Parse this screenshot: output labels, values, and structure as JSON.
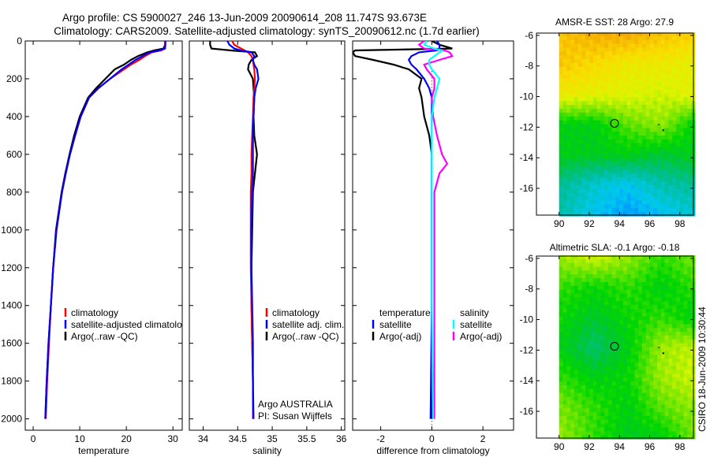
{
  "title_line1": "Argo profile: CS 5900027_246 13-Jun-2009 20090614_208 11.747S 93.673E",
  "title_line2": "Climatology: CARS2009. Satellite-adjusted climatology: synTS_20090612.nc (1.7d earlier)",
  "credit": "CSIRO 18-Jun-2009 10:30:44",
  "colors": {
    "climatology": "#ff0000",
    "satellite": "#0000ff",
    "argo": "#000000",
    "sal_satellite": "#00ffff",
    "sal_argo": "#ff00ff"
  },
  "chart_data": [
    {
      "type": "line",
      "id": "temperature",
      "xlabel": "temperature",
      "ylabel": "",
      "xlim": [
        -1.7,
        32
      ],
      "ylim": [
        0,
        2060
      ],
      "y_reversed": true,
      "xticks": [
        0,
        10,
        20,
        30
      ],
      "yticks": [
        0,
        200,
        400,
        600,
        800,
        1000,
        1200,
        1400,
        1600,
        1800,
        2000
      ],
      "depth": [
        0,
        20,
        40,
        50,
        60,
        80,
        100,
        125,
        150,
        200,
        250,
        300,
        400,
        500,
        600,
        700,
        800,
        1000,
        1200,
        1400,
        1600,
        1800,
        2000
      ],
      "series": [
        {
          "name": "Argo(..raw -QC)",
          "color": "#000000",
          "values": [
            28.3,
            28.3,
            28.0,
            26,
            24.5,
            22.5,
            21,
            19.5,
            17.5,
            15.5,
            13.5,
            11.8,
            10,
            8.8,
            7.8,
            6.9,
            6.1,
            4.9,
            4.3,
            3.8,
            3.3,
            2.9,
            2.6
          ]
        },
        {
          "name": "climatology",
          "color": "#ff0000",
          "values": [
            28.3,
            28.3,
            28.3,
            27.5,
            25.5,
            24,
            22.8,
            21,
            19.5,
            16.5,
            14,
            12,
            10.2,
            9,
            7.9,
            7,
            6.2,
            5,
            4.3,
            3.8,
            3.4,
            3.0,
            2.7
          ]
        },
        {
          "name": "satellite-adjusted climatology",
          "color": "#0000ff",
          "values": [
            28.4,
            28.4,
            28.3,
            27,
            25,
            23.5,
            22,
            20.5,
            19,
            16.5,
            14,
            12,
            10.2,
            9,
            7.9,
            7,
            6.2,
            5,
            4.3,
            3.8,
            3.3,
            2.9,
            2.6
          ]
        }
      ],
      "legend": [
        "climatology",
        "satellite-adjusted climatology",
        "Argo(..raw -QC)"
      ]
    },
    {
      "type": "line",
      "id": "salinity",
      "xlabel": "salinity",
      "xlim": [
        33.8,
        36.05
      ],
      "ylim": [
        0,
        2060
      ],
      "y_reversed": true,
      "xticks": [
        34,
        34.5,
        35,
        35.5,
        36
      ],
      "depth": [
        0,
        20,
        40,
        50,
        60,
        80,
        100,
        125,
        150,
        200,
        250,
        300,
        400,
        500,
        600,
        700,
        800,
        1000,
        1200,
        1400,
        1600,
        1800,
        2000
      ],
      "series": [
        {
          "name": "Argo(..raw -QC)",
          "color": "#000000",
          "values": [
            34.1,
            34.1,
            34.12,
            34.4,
            34.75,
            34.78,
            34.7,
            34.66,
            34.65,
            34.72,
            34.73,
            34.74,
            34.73,
            34.74,
            34.78,
            34.75,
            34.72,
            34.71,
            34.7,
            34.7,
            34.71,
            34.72,
            34.72
          ]
        },
        {
          "name": "climatology",
          "color": "#ff0000",
          "values": [
            34.42,
            34.45,
            34.55,
            34.6,
            34.65,
            34.7,
            34.72,
            34.73,
            34.74,
            34.75,
            34.74,
            34.73,
            34.72,
            34.71,
            34.7,
            34.7,
            34.69,
            34.69,
            34.69,
            34.7,
            34.71,
            34.72,
            34.72
          ]
        },
        {
          "name": "satellite adj. clim.",
          "color": "#0000ff",
          "values": [
            34.35,
            34.38,
            34.45,
            34.55,
            34.7,
            34.74,
            34.72,
            34.74,
            34.78,
            34.8,
            34.76,
            34.74,
            34.73,
            34.72,
            34.72,
            34.72,
            34.71,
            34.7,
            34.7,
            34.71,
            34.72,
            34.72,
            34.73
          ]
        }
      ],
      "legend": [
        "climatology",
        "satellite adj. clim.",
        "Argo(..raw -QC)"
      ],
      "annotation": [
        "Argo AUSTRALIA",
        "PI: Susan Wijffels"
      ]
    },
    {
      "type": "line",
      "id": "difference",
      "xlabel": "difference from climatology",
      "xlim": [
        -3.1,
        3.2
      ],
      "ylim": [
        0,
        2060
      ],
      "y_reversed": true,
      "xticks": [
        -2,
        0,
        2
      ],
      "depth": [
        0,
        20,
        40,
        50,
        60,
        80,
        100,
        125,
        150,
        200,
        250,
        300,
        400,
        500,
        600,
        650,
        700,
        800,
        1000,
        1400,
        2000
      ],
      "series": [
        {
          "name": "temperature Argo(-adj)",
          "color": "#000000",
          "values": [
            0,
            0.3,
            0.8,
            -3,
            -3.1,
            -3,
            -2.3,
            -1.5,
            -0.9,
            -0.4,
            -0.5,
            -0.4,
            -0.3,
            -0.1,
            0,
            0,
            0,
            0,
            0,
            0,
            0
          ]
        },
        {
          "name": "temperature satellite",
          "color": "#0000ff",
          "values": [
            0.2,
            0.3,
            0.3,
            0.2,
            -0.5,
            -0.8,
            -0.9,
            -0.8,
            -0.6,
            -0.3,
            -0.1,
            0,
            0,
            0,
            0,
            0,
            0,
            0,
            0,
            0,
            -0.05
          ]
        },
        {
          "name": "salinity Argo(-adj)",
          "color": "#ff00ff",
          "values": [
            -0.3,
            -0.5,
            -0.3,
            0.5,
            0.7,
            0.8,
            0.3,
            -0.3,
            -0.2,
            0.1,
            0.1,
            0,
            0.05,
            0.2,
            0.4,
            0.6,
            0.3,
            0.1,
            0.1,
            0.1,
            0.1
          ]
        },
        {
          "name": "salinity satellite",
          "color": "#00ffff",
          "values": [
            -0.2,
            -0.3,
            0.1,
            0.4,
            0.3,
            0.1,
            -0.1,
            -0.1,
            0,
            0.3,
            0.2,
            0.1,
            0,
            0,
            0,
            0,
            0,
            0,
            0,
            0,
            0.05
          ]
        }
      ],
      "legend_headers": [
        "temperature",
        "salinity"
      ],
      "legend": [
        "satellite",
        "Argo(-adj)",
        "satellite",
        "Argo(-adj)"
      ]
    },
    {
      "type": "heatmap",
      "id": "sst_map",
      "title": "AMSR-E SST: 28 Argo: 27.9",
      "xlim": [
        88.5,
        98.9
      ],
      "ylim": [
        -17.75,
        -5.85
      ],
      "xticks": [
        90,
        92,
        94,
        96,
        98
      ],
      "yticks": [
        -6,
        -8,
        -10,
        -12,
        -14,
        -16
      ],
      "data_lon": [
        90,
        98.9
      ],
      "data_lat": [
        -5.8,
        -17.6
      ],
      "argo_position": [
        93.673,
        -11.747
      ],
      "grid_colormap_levels": [
        [
          0.8,
          0.83,
          0.84,
          0.8,
          0.78
        ],
        [
          0.79,
          0.76,
          0.72,
          0.72,
          0.7
        ],
        [
          0.72,
          0.7,
          0.69,
          0.67,
          0.7
        ],
        [
          0.5,
          0.5,
          0.58,
          0.62,
          0.5
        ],
        [
          0.5,
          0.49,
          0.5,
          0.47,
          0.5
        ],
        [
          0.4,
          0.35,
          0.32,
          0.38,
          0.4
        ],
        [
          0.38,
          0.32,
          0.27,
          0.31,
          0.35
        ]
      ]
    },
    {
      "type": "heatmap",
      "id": "sla_map",
      "title": "Altimetric SLA: -0.1 Argo: -0.18",
      "xlim": [
        88.5,
        98.9
      ],
      "ylim": [
        -17.75,
        -5.85
      ],
      "xticks": [
        90,
        92,
        94,
        96,
        98
      ],
      "yticks": [
        -6,
        -8,
        -10,
        -12,
        -14,
        -16
      ],
      "data_lon": [
        90,
        98.9
      ],
      "data_lat": [
        -5.8,
        -17.6
      ],
      "argo_position": [
        93.673,
        -11.747
      ],
      "grid_colormap_levels": [
        [
          0.63,
          0.67,
          0.62,
          0.55,
          0.6
        ],
        [
          0.55,
          0.52,
          0.55,
          0.5,
          0.55
        ],
        [
          0.52,
          0.48,
          0.52,
          0.55,
          0.5
        ],
        [
          0.5,
          0.43,
          0.5,
          0.63,
          0.66
        ],
        [
          0.55,
          0.5,
          0.52,
          0.63,
          0.67
        ],
        [
          0.6,
          0.55,
          0.5,
          0.58,
          0.62
        ],
        [
          0.62,
          0.55,
          0.49,
          0.5,
          0.6
        ]
      ]
    }
  ]
}
